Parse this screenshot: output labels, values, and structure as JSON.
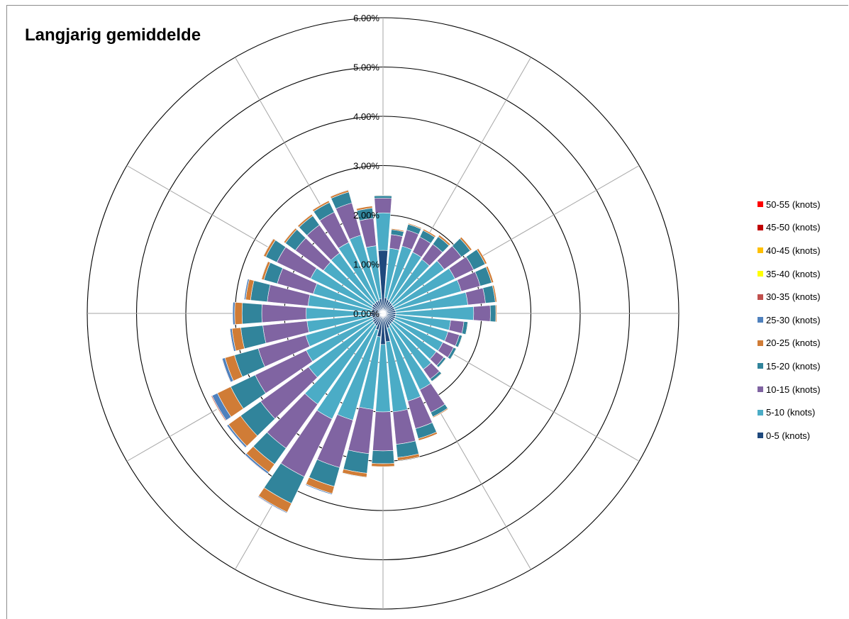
{
  "chart_data": {
    "type": "polar-stacked-bar",
    "title": "Langjarig gemiddelde",
    "radial_axis": {
      "min": 0,
      "max": 0.06,
      "ticks": [
        0,
        0.01,
        0.02,
        0.03,
        0.04,
        0.05,
        0.06
      ],
      "tick_labels": [
        "0.00%",
        "1.00%",
        "2.00%",
        "3.00%",
        "4.00%",
        "5.00%",
        "6.00%"
      ]
    },
    "sector_count": 36,
    "sector_step_degrees": 10,
    "directions_degrees": [
      0,
      10,
      20,
      30,
      40,
      50,
      60,
      70,
      80,
      90,
      100,
      110,
      120,
      130,
      140,
      150,
      160,
      170,
      180,
      190,
      200,
      210,
      220,
      230,
      240,
      250,
      260,
      270,
      280,
      290,
      300,
      310,
      320,
      330,
      340,
      350
    ],
    "legend_position": "right",
    "gridlines": true,
    "series": [
      {
        "name": "0-5 (knots)",
        "color": "#1f497d",
        "values": [
          0.0128,
          0.0032,
          0.0029,
          0.0027,
          0.0026,
          0.0025,
          0.0025,
          0.0025,
          0.0026,
          0.0026,
          0.0026,
          0.0026,
          0.0026,
          0.0026,
          0.0026,
          0.0027,
          0.0031,
          0.0058,
          0.0063,
          0.0048,
          0.0035,
          0.0028,
          0.0027,
          0.0026,
          0.0023,
          0.0023,
          0.0025,
          0.0026,
          0.0023,
          0.0023,
          0.0025,
          0.0027,
          0.0026,
          0.0027,
          0.0027,
          0.003
        ]
      },
      {
        "name": "5-10 (knots)",
        "color": "#4bacc6",
        "values": [
          0.0076,
          0.0101,
          0.0113,
          0.0111,
          0.0109,
          0.0128,
          0.0137,
          0.014,
          0.0147,
          0.0158,
          0.0112,
          0.0111,
          0.0109,
          0.0107,
          0.0114,
          0.0145,
          0.0154,
          0.0143,
          0.0137,
          0.0148,
          0.019,
          0.021,
          0.02,
          0.016,
          0.015,
          0.014,
          0.013,
          0.013,
          0.013,
          0.0124,
          0.0138,
          0.0122,
          0.0125,
          0.0133,
          0.0138,
          0.0108
        ]
      },
      {
        "name": "10-15 (knots)",
        "color": "#8064a2",
        "values": [
          0.003,
          0.0028,
          0.0034,
          0.0034,
          0.0038,
          0.0043,
          0.0042,
          0.004,
          0.0036,
          0.0034,
          0.0027,
          0.0024,
          0.0024,
          0.0019,
          0.0024,
          0.0051,
          0.0058,
          0.0066,
          0.0079,
          0.009,
          0.01,
          0.013,
          0.011,
          0.012,
          0.0115,
          0.01,
          0.009,
          0.009,
          0.0083,
          0.0076,
          0.0076,
          0.007,
          0.007,
          0.0068,
          0.0068,
          0.0056
        ]
      },
      {
        "name": "15-20 (knots)",
        "color": "#31849b",
        "values": [
          0.0005,
          0.001,
          0.0012,
          0.0015,
          0.0019,
          0.0022,
          0.0026,
          0.0024,
          0.002,
          0.0011,
          0.0008,
          0.0006,
          0.0006,
          0.0005,
          0.0006,
          0.001,
          0.0021,
          0.0027,
          0.0026,
          0.004,
          0.004,
          0.006,
          0.004,
          0.005,
          0.0055,
          0.005,
          0.0045,
          0.004,
          0.0034,
          0.0028,
          0.0025,
          0.0025,
          0.0023,
          0.0022,
          0.0023,
          0.0021
        ]
      },
      {
        "name": "20-25 (knots)",
        "color": "#d07c36",
        "values": [
          0.0001,
          0.0002,
          0.0002,
          0.0003,
          0.0004,
          0.0004,
          0.0004,
          0.0004,
          0.0003,
          0.0002,
          0.0001,
          0.0001,
          0.0001,
          0.0001,
          0.0001,
          0.0002,
          0.0004,
          0.0006,
          0.0006,
          0.0008,
          0.0015,
          0.002,
          0.002,
          0.003,
          0.003,
          0.002,
          0.0018,
          0.0015,
          0.001,
          0.0005,
          0.0005,
          0.0004,
          0.0004,
          0.0004,
          0.0004,
          0.0004
        ]
      },
      {
        "name": "25-30 (knots)",
        "color": "#4f81bd",
        "values": [
          0.0,
          0.0,
          0.0,
          0.0,
          0.0,
          0.0,
          0.0,
          0.0,
          0.0,
          0.0,
          0.0,
          0.0,
          0.0,
          0.0,
          0.0,
          0.0,
          0.0,
          0.0,
          0.0,
          0.0001,
          0.0002,
          0.0002,
          0.0004,
          0.0004,
          0.0012,
          0.0006,
          0.0004,
          0.0004,
          0.0003,
          0.0001,
          0.0001,
          0.0001,
          0.0001,
          0.0001,
          0.0001,
          0.0
        ]
      },
      {
        "name": "30-35 (knots)",
        "color": "#c0504d",
        "values": [
          0.0,
          0.0,
          0.0,
          0.0,
          0.0,
          0.0,
          0.0,
          0.0,
          0.0,
          0.0,
          0.0,
          0.0,
          0.0,
          0.0,
          0.0,
          0.0,
          0.0,
          0.0,
          0.0,
          0.0,
          0.0,
          0.0001,
          0.0001,
          0.0001,
          0.0002,
          0.0001,
          0.0001,
          0.0,
          0.0,
          0.0,
          0.0,
          0.0,
          0.0,
          0.0,
          0.0,
          0.0
        ]
      },
      {
        "name": "35-40 (knots)",
        "color": "#ffff00",
        "values": [
          0.0,
          0.0,
          0.0,
          0.0,
          0.0,
          0.0,
          0.0,
          0.0,
          0.0,
          0.0,
          0.0,
          0.0,
          0.0,
          0.0,
          0.0,
          0.0,
          0.0,
          0.0,
          0.0,
          0.0,
          0.0,
          0.0,
          0.0,
          0.0,
          0.0001,
          0.0,
          0.0,
          0.0,
          0.0,
          0.0,
          0.0,
          0.0,
          0.0,
          0.0,
          0.0,
          0.0
        ]
      },
      {
        "name": "40-45 (knots)",
        "color": "#ffc000",
        "values": [
          0.0,
          0.0,
          0.0,
          0.0,
          0.0,
          0.0,
          0.0,
          0.0,
          0.0,
          0.0,
          0.0,
          0.0,
          0.0,
          0.0,
          0.0,
          0.0,
          0.0,
          0.0,
          0.0,
          0.0,
          0.0,
          0.0,
          0.0,
          0.0,
          0.0001,
          0.0,
          0.0,
          0.0,
          0.0,
          0.0,
          0.0,
          0.0,
          0.0,
          0.0,
          0.0,
          0.0
        ]
      },
      {
        "name": "45-50 (knots)",
        "color": "#c00000",
        "values": [
          0.0,
          0.0,
          0.0,
          0.0,
          0.0,
          0.0,
          0.0,
          0.0,
          0.0,
          0.0,
          0.0,
          0.0,
          0.0,
          0.0,
          0.0,
          0.0,
          0.0,
          0.0,
          0.0,
          0.0,
          0.0,
          0.0,
          0.0,
          0.0,
          0.0,
          0.0,
          0.0,
          0.0,
          0.0,
          0.0,
          0.0,
          0.0,
          0.0,
          0.0,
          0.0,
          0.0
        ]
      },
      {
        "name": "50-55 (knots)",
        "color": "#ff0000",
        "values": [
          0.0,
          0.0,
          0.0,
          0.0,
          0.0,
          0.0,
          0.0,
          0.0,
          0.0,
          0.0,
          0.0,
          0.0,
          0.0,
          0.0,
          0.0,
          0.0,
          0.0,
          0.0,
          0.0,
          0.0,
          0.0,
          0.0,
          0.0,
          0.0,
          0.0,
          0.0,
          0.0,
          0.0,
          0.0,
          0.0,
          0.0,
          0.0,
          0.0,
          0.0,
          0.0,
          0.0
        ]
      }
    ]
  }
}
